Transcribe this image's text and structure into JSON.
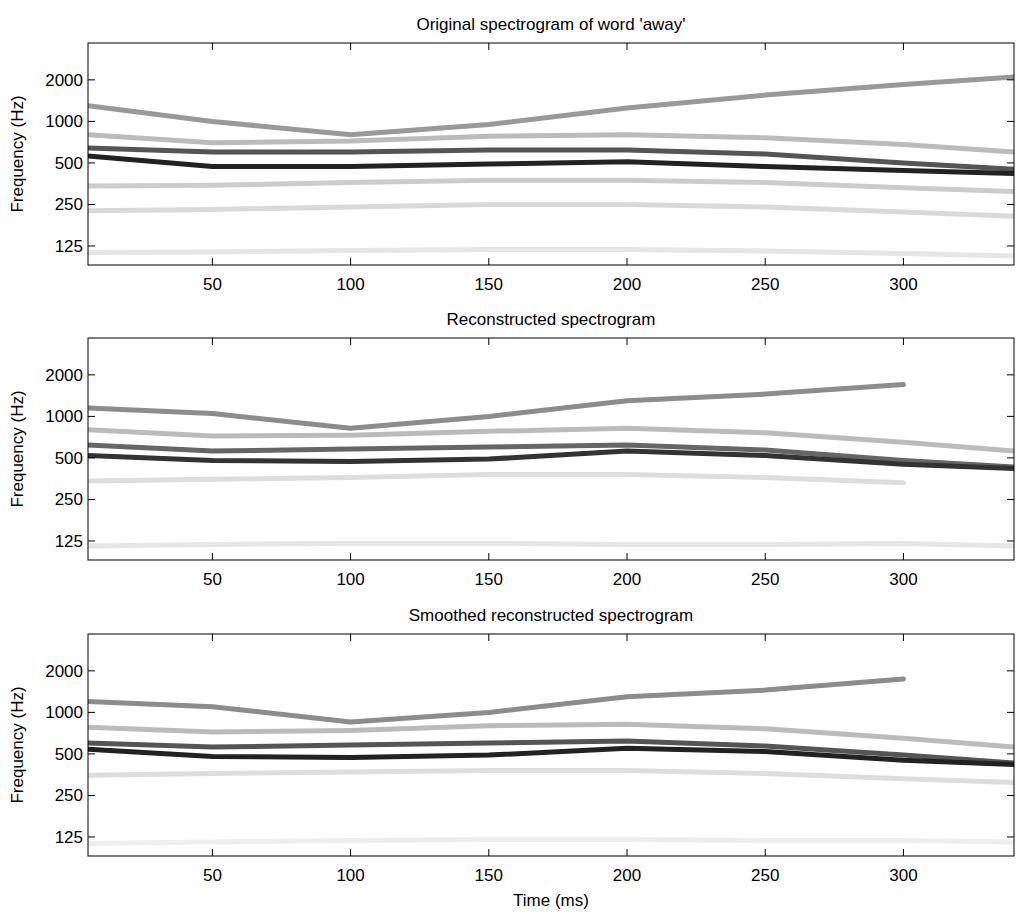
{
  "chart_data": [
    {
      "type": "line",
      "title": "Original spectrogram of word 'away'",
      "ylabel": "Frequency (Hz)",
      "log": "y",
      "x": [
        5,
        50,
        100,
        150,
        200,
        250,
        300,
        340
      ],
      "xlim": [
        5,
        340
      ],
      "ylim": [
        91,
        3700
      ],
      "xticks": [
        50,
        100,
        150,
        200,
        250,
        300
      ],
      "yticks": [
        125,
        250,
        500,
        1000,
        2000
      ],
      "series": [
        {
          "color": "#e6e6e6",
          "values": [
            112,
            113,
            116,
            118,
            118,
            115,
            110,
            106
          ]
        },
        {
          "color": "#d9d9d9",
          "values": [
            225,
            230,
            240,
            250,
            250,
            240,
            220,
            205
          ]
        },
        {
          "color": "#cccccc",
          "values": [
            340,
            345,
            360,
            375,
            375,
            360,
            330,
            310
          ]
        },
        {
          "color": "#bbbbbb",
          "values": [
            800,
            700,
            720,
            780,
            800,
            760,
            680,
            600
          ]
        },
        {
          "color": "#999999",
          "values": [
            1300,
            1000,
            800,
            950,
            1250,
            1550,
            1850,
            2100
          ]
        },
        {
          "color": "#555555",
          "values": [
            640,
            600,
            600,
            620,
            620,
            580,
            500,
            450
          ]
        },
        {
          "color": "#222222",
          "values": [
            560,
            470,
            470,
            490,
            510,
            470,
            440,
            420
          ]
        }
      ]
    },
    {
      "type": "line",
      "title": "Reconstructed spectrogram",
      "ylabel": "Frequency (Hz)",
      "log": "y",
      "x": [
        5,
        50,
        100,
        150,
        200,
        250,
        300,
        340
      ],
      "xlim": [
        5,
        340
      ],
      "ylim": [
        91,
        3700
      ],
      "xticks": [
        50,
        100,
        150,
        200,
        250,
        300
      ],
      "yticks": [
        125,
        250,
        500,
        1000,
        2000
      ],
      "series": [
        {
          "color": "#e6e6e6",
          "values": [
            115,
            118,
            120,
            120,
            118,
            118,
            120,
            115
          ]
        },
        {
          "color": "#dddddd",
          "values": [
            340,
            350,
            360,
            380,
            380,
            360,
            330,
            null
          ]
        },
        {
          "color": "#bbbbbb",
          "values": [
            800,
            720,
            730,
            780,
            820,
            760,
            650,
            560
          ]
        },
        {
          "color": "#8c8c8c",
          "values": [
            1150,
            1050,
            820,
            1000,
            1300,
            1450,
            1700,
            null
          ]
        },
        {
          "color": "#666666",
          "values": [
            620,
            560,
            580,
            600,
            620,
            570,
            480,
            430
          ]
        },
        {
          "color": "#333333",
          "values": [
            520,
            480,
            470,
            490,
            560,
            520,
            450,
            420
          ]
        }
      ]
    },
    {
      "type": "line",
      "title": "Smoothed reconstructed spectrogram",
      "xlabel": "Time (ms)",
      "ylabel": "Frequency (Hz)",
      "log": "y",
      "x": [
        5,
        50,
        100,
        150,
        200,
        250,
        300,
        340
      ],
      "xlim": [
        5,
        340
      ],
      "ylim": [
        91,
        3700
      ],
      "xticks": [
        50,
        100,
        150,
        200,
        250,
        300
      ],
      "yticks": [
        125,
        250,
        500,
        1000,
        2000
      ],
      "series": [
        {
          "color": "#eeeeee",
          "values": [
            112,
            115,
            118,
            120,
            120,
            118,
            118,
            115
          ]
        },
        {
          "color": "#dddddd",
          "values": [
            350,
            360,
            370,
            380,
            380,
            360,
            330,
            310
          ]
        },
        {
          "color": "#bbbbbb",
          "values": [
            780,
            720,
            740,
            800,
            820,
            760,
            650,
            560
          ]
        },
        {
          "color": "#8c8c8c",
          "values": [
            1200,
            1100,
            850,
            1000,
            1300,
            1450,
            1750,
            null
          ]
        },
        {
          "color": "#555555",
          "values": [
            600,
            560,
            580,
            600,
            620,
            570,
            490,
            430
          ]
        },
        {
          "color": "#222222",
          "values": [
            540,
            480,
            470,
            490,
            550,
            520,
            450,
            420
          ]
        }
      ]
    }
  ]
}
